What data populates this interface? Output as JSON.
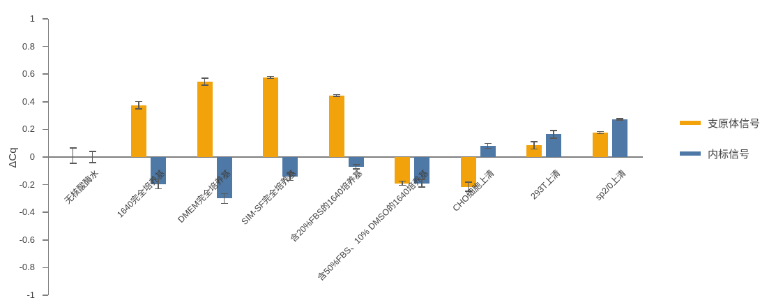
{
  "chart_data": {
    "type": "bar",
    "title": "",
    "xlabel": "",
    "ylabel": "ΔCq",
    "ylim": [
      -1,
      1
    ],
    "grid": false,
    "legend_position": "right",
    "categories": [
      "无核酸酶水",
      "1640完全培养基",
      "DMEM完全培养基",
      "SIM-SF完全培养基",
      "含20%FBS的1640培养基",
      "含50%FBS、10% DMSO的1640培养基",
      "CHO细胞上清",
      "293T上清",
      "sp2/0上清"
    ],
    "series": [
      {
        "name": "支原体信号",
        "color": "#F2A30B",
        "values": [
          0.01,
          0.375,
          0.545,
          0.575,
          0.445,
          -0.19,
          -0.215,
          0.085,
          0.177
        ],
        "errors": [
          0.055,
          0.027,
          0.025,
          0.008,
          0.006,
          0.015,
          0.032,
          0.026,
          0.008
        ]
      },
      {
        "name": "内标信号",
        "color": "#4E79A7",
        "values": [
          0.0,
          -0.195,
          -0.3,
          -0.14,
          -0.07,
          -0.19,
          0.08,
          0.165,
          0.272
        ],
        "errors": [
          0.04,
          0.035,
          0.035,
          0.03,
          0.015,
          0.028,
          0.018,
          0.028,
          0.005
        ]
      }
    ],
    "yticks": {
      "values": [
        1,
        0.8,
        0.6,
        0.4,
        0.2,
        0,
        -0.2,
        -0.4,
        -0.6,
        -0.8,
        -1
      ],
      "labels": [
        "1",
        "0.8",
        "0.6",
        "0.4",
        "0.2",
        "0",
        "-0.2",
        "-0.4",
        "-0.6",
        "-0.8",
        "-1"
      ]
    },
    "colors": {
      "axis": "#7F7F7F",
      "error_bar": "#595959",
      "text": "#404040"
    }
  }
}
